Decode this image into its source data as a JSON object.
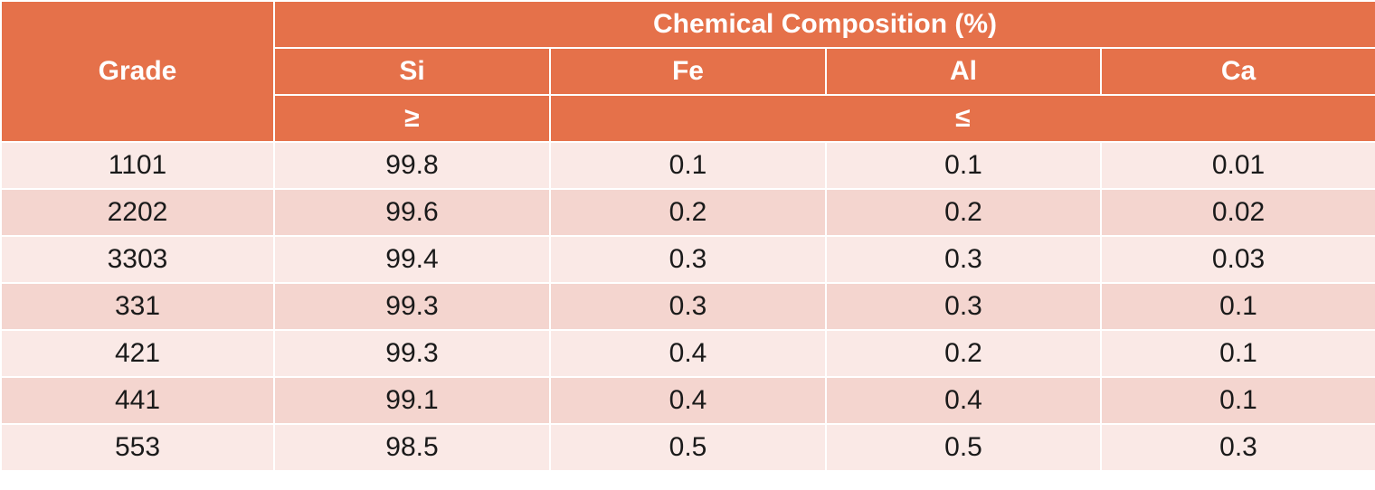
{
  "table": {
    "header": {
      "grade_label": "Grade",
      "group_label": "Chemical Composition (%)",
      "elements": [
        "Si",
        "Fe",
        "Al",
        "Ca"
      ],
      "si_limit": "≥",
      "others_limit": "≤"
    },
    "rows": [
      {
        "grade": "1101",
        "si": "99.8",
        "fe": "0.1",
        "al": "0.1",
        "ca": "0.01"
      },
      {
        "grade": "2202",
        "si": "99.6",
        "fe": "0.2",
        "al": "0.2",
        "ca": "0.02"
      },
      {
        "grade": "3303",
        "si": "99.4",
        "fe": "0.3",
        "al": "0.3",
        "ca": "0.03"
      },
      {
        "grade": "331",
        "si": "99.3",
        "fe": "0.3",
        "al": "0.3",
        "ca": "0.1"
      },
      {
        "grade": "421",
        "si": "99.3",
        "fe": "0.4",
        "al": "0.2",
        "ca": "0.1"
      },
      {
        "grade": "441",
        "si": "99.1",
        "fe": "0.4",
        "al": "0.4",
        "ca": "0.1"
      },
      {
        "grade": "553",
        "si": "98.5",
        "fe": "0.5",
        "al": "0.5",
        "ca": "0.3"
      }
    ],
    "colors": {
      "header_bg": "#e5714a",
      "row_light": "#fae9e6",
      "row_dark": "#f4d5cf"
    }
  }
}
